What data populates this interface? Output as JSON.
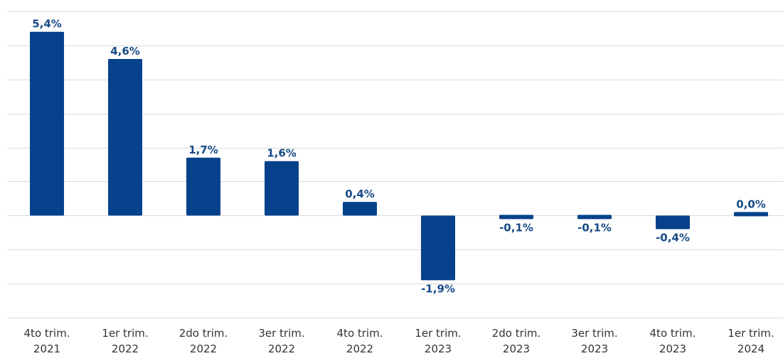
{
  "chart_data": {
    "type": "bar",
    "categories": [
      [
        "4to trim.",
        "2021"
      ],
      [
        "1er trim.",
        "2022"
      ],
      [
        "2do trim.",
        "2022"
      ],
      [
        "3er trim.",
        "2022"
      ],
      [
        "4to trim.",
        "2022"
      ],
      [
        "1er trim.",
        "2023"
      ],
      [
        "2do trim.",
        "2023"
      ],
      [
        "3er trim.",
        "2023"
      ],
      [
        "4to trim.",
        "2023"
      ],
      [
        "1er trim.",
        "2024"
      ]
    ],
    "values": [
      5.4,
      4.6,
      1.7,
      1.6,
      0.4,
      -1.9,
      -0.1,
      -0.1,
      -0.4,
      0.0
    ],
    "data_labels": [
      "5,4%",
      "4,6%",
      "1,7%",
      "1,6%",
      "0,4%",
      "-1,9%",
      "-0,1%",
      "-0,1%",
      "-0,4%",
      "0,0%"
    ],
    "title": "",
    "xlabel": "",
    "ylabel": "",
    "ylim": [
      -3.0,
      6.0
    ],
    "grid": true,
    "gridline_step": 1.0,
    "colors": {
      "bar": "#06428b",
      "label": "#174a86",
      "grid": "#d9d9d9"
    }
  }
}
